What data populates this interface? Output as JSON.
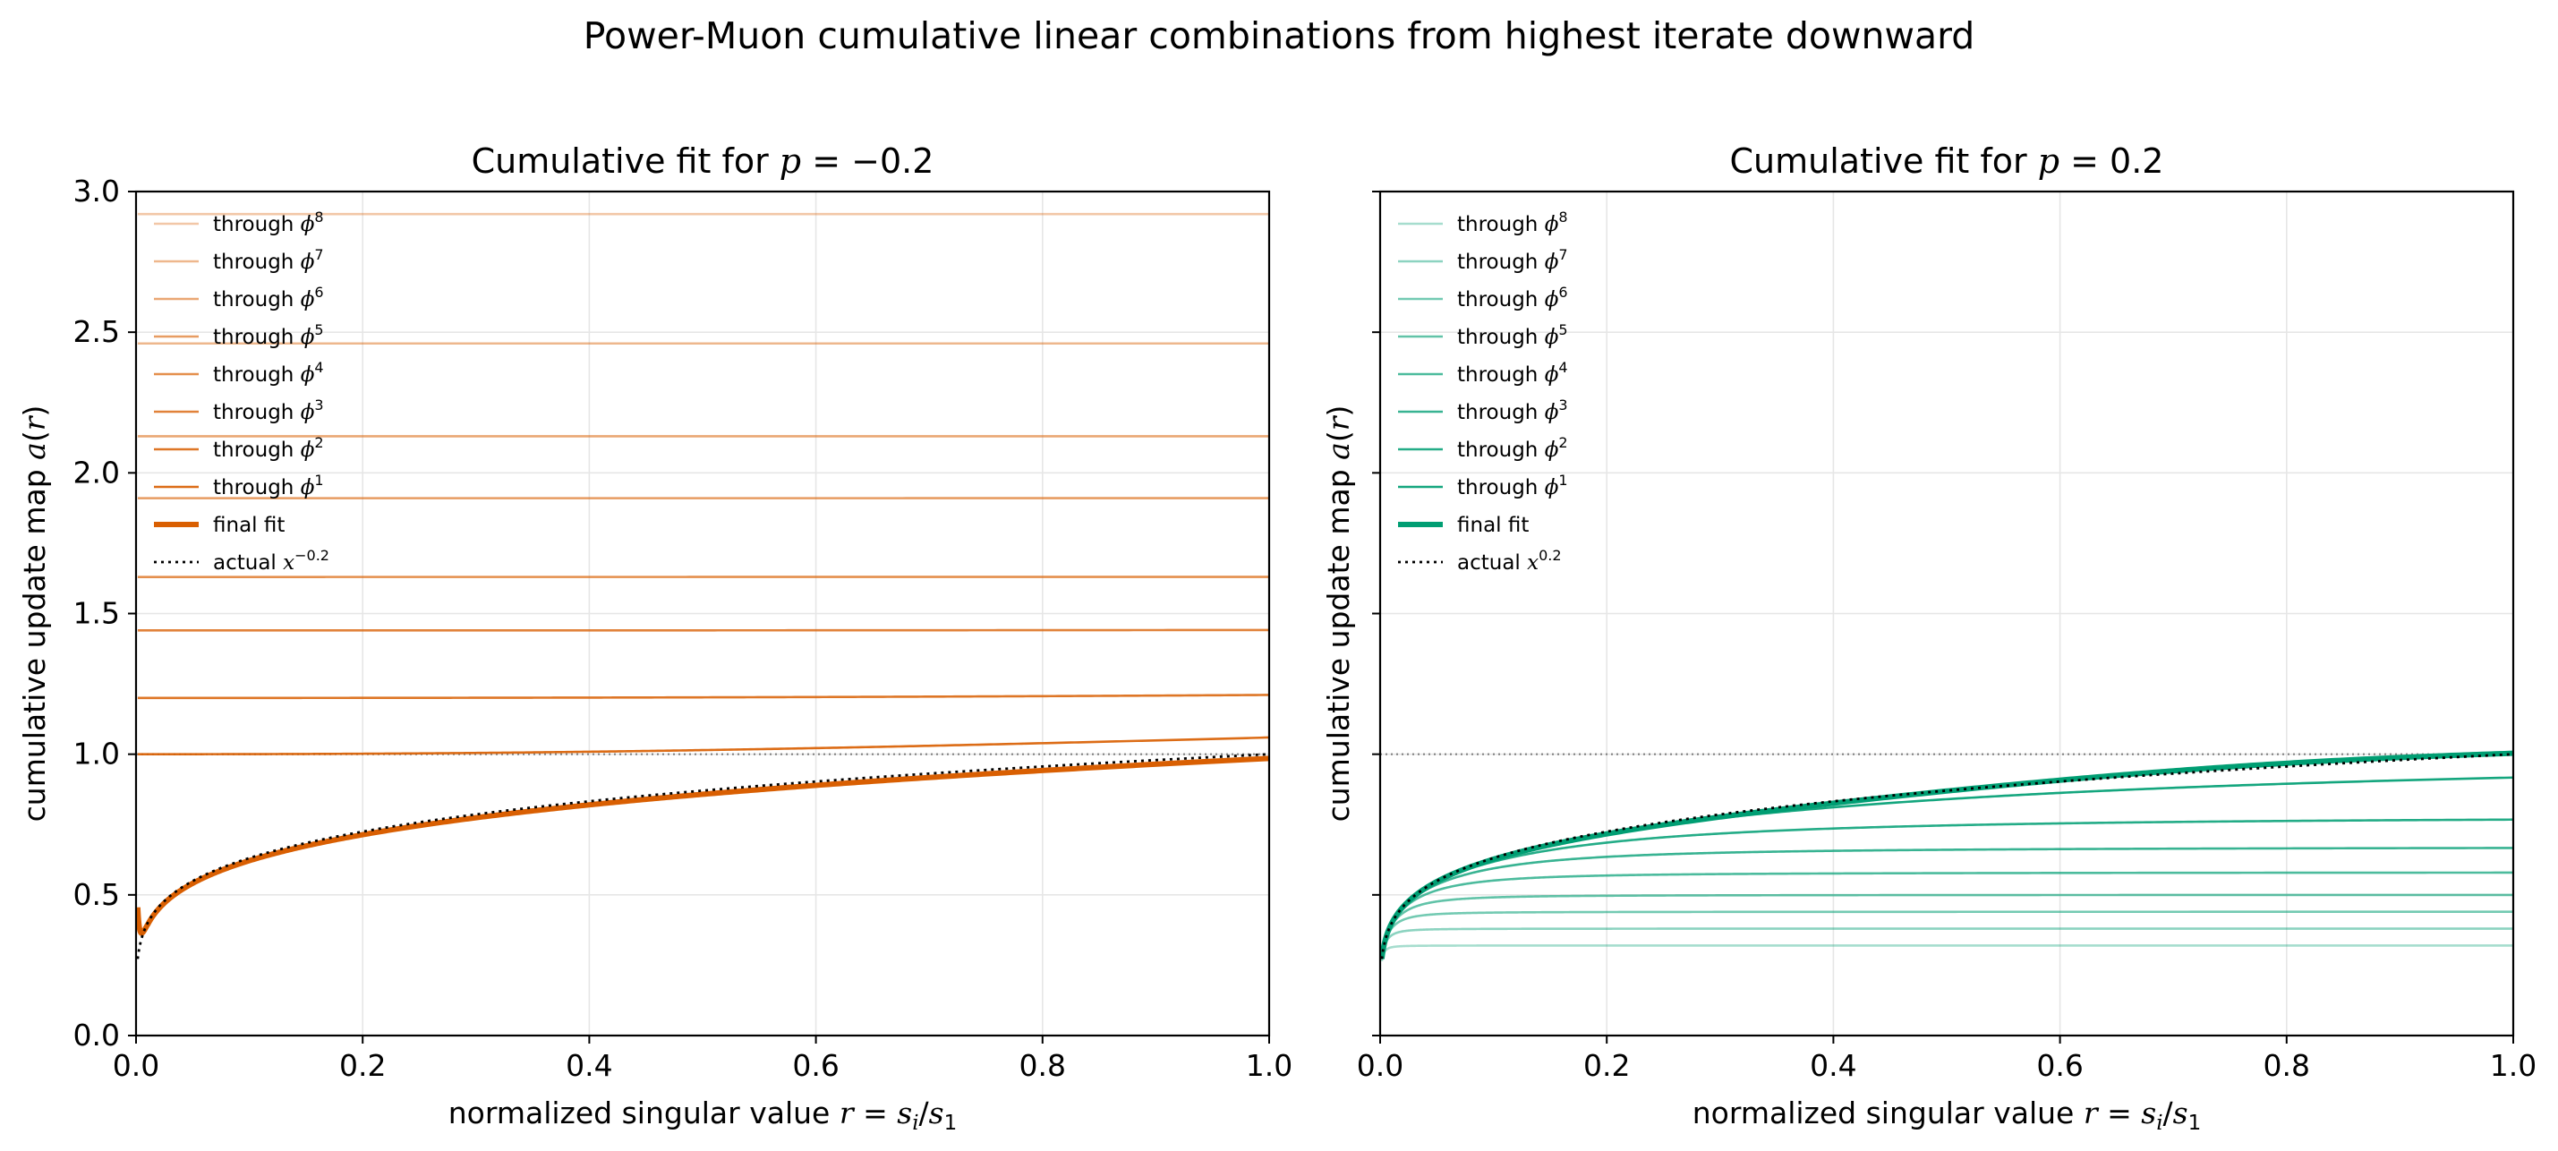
{
  "figure": {
    "suptitle": "Power-Muon cumulative linear combinations from highest iterate downward"
  },
  "colors": {
    "left_accent": "#d95f02",
    "right_accent": "#009e73",
    "actual": "#000000",
    "reference": "#808080",
    "grid": "#e6e6e6"
  },
  "chart_data": [
    {
      "type": "line",
      "title": "Cumulative fit for p = −0.2",
      "title_parts": {
        "pre": "Cumulative fit for ",
        "var": "p",
        "eq": " = ",
        "val": "−0.2"
      },
      "xlabel": "normalized singular value r = s_i/s_1",
      "xlabel_parts": {
        "pre": "normalized singular value ",
        "r": "r",
        "eq": " = ",
        "s": "s",
        "i": "i",
        "slash": "/",
        "s2": "s",
        "one": "1"
      },
      "ylabel": "cumulative update map a(r)",
      "ylabel_parts": {
        "pre": "cumulative update map ",
        "a": "a",
        "lp": "(",
        "r": "r",
        "rp": ")"
      },
      "xlim": [
        0,
        1
      ],
      "ylim": [
        0,
        3
      ],
      "xticks": [
        "0.0",
        "0.2",
        "0.4",
        "0.6",
        "0.8",
        "1.0"
      ],
      "yticks": [
        "0.0",
        "0.5",
        "1.0",
        "1.5",
        "2.0",
        "2.5",
        "3.0"
      ],
      "grid": true,
      "legend_placement": "upper-left",
      "reference_line_y": 1.0,
      "series": [
        {
          "name": "through φ8",
          "label": "through ",
          "phi": "ϕ",
          "exp": "8",
          "plateau": 2.92,
          "alpha": 0.35
        },
        {
          "name": "through φ7",
          "label": "through ",
          "phi": "ϕ",
          "exp": "7",
          "plateau": 2.46,
          "alpha": 0.45
        },
        {
          "name": "through φ6",
          "label": "through ",
          "phi": "ϕ",
          "exp": "6",
          "plateau": 2.13,
          "alpha": 0.55
        },
        {
          "name": "through φ5",
          "label": "through ",
          "phi": "ϕ",
          "exp": "5",
          "plateau": 1.91,
          "alpha": 0.62
        },
        {
          "name": "through φ4",
          "label": "through ",
          "phi": "ϕ",
          "exp": "4",
          "plateau": 1.63,
          "alpha": 0.7
        },
        {
          "name": "through φ3",
          "label": "through ",
          "phi": "ϕ",
          "exp": "3",
          "plateau": 1.44,
          "alpha": 0.78
        },
        {
          "name": "through φ2",
          "label": "through ",
          "phi": "ϕ",
          "exp": "2",
          "plateau": 1.2,
          "alpha": 0.86
        },
        {
          "name": "through φ1",
          "label": "through ",
          "phi": "ϕ",
          "exp": "1",
          "plateau": 1.0,
          "alpha": 0.92
        },
        {
          "name": "final fit",
          "label": "final fit",
          "style": "bold"
        },
        {
          "name": "actual x^-0.2",
          "label": "actual ",
          "xvar": "x",
          "exp": "−0.2",
          "style": "dotted"
        }
      ]
    },
    {
      "type": "line",
      "title": "Cumulative fit for p = 0.2",
      "title_parts": {
        "pre": "Cumulative fit for ",
        "var": "p",
        "eq": " = ",
        "val": "0.2"
      },
      "xlabel": "normalized singular value r = s_i/s_1",
      "xlabel_parts": {
        "pre": "normalized singular value ",
        "r": "r",
        "eq": " = ",
        "s": "s",
        "i": "i",
        "slash": "/",
        "s2": "s",
        "one": "1"
      },
      "ylabel": "cumulative update map a(r)",
      "ylabel_parts": {
        "pre": "cumulative update map ",
        "a": "a",
        "lp": "(",
        "r": "r",
        "rp": ")"
      },
      "xlim": [
        0,
        1
      ],
      "ylim": [
        0,
        3
      ],
      "xticks": [
        "0.0",
        "0.2",
        "0.4",
        "0.6",
        "0.8",
        "1.0"
      ],
      "yticks": [
        "0.0",
        "0.5",
        "1.0",
        "1.5",
        "2.0",
        "2.5",
        "3.0"
      ],
      "grid": true,
      "legend_placement": "upper-left",
      "reference_line_y": 1.0,
      "series": [
        {
          "name": "through φ8",
          "label": "through ",
          "phi": "ϕ",
          "exp": "8",
          "plateau": 0.32,
          "alpha": 0.35
        },
        {
          "name": "through φ7",
          "label": "through ",
          "phi": "ϕ",
          "exp": "7",
          "plateau": 0.38,
          "alpha": 0.45
        },
        {
          "name": "through φ6",
          "label": "through ",
          "phi": "ϕ",
          "exp": "6",
          "plateau": 0.44,
          "alpha": 0.55
        },
        {
          "name": "through φ5",
          "label": "through ",
          "phi": "ϕ",
          "exp": "5",
          "plateau": 0.5,
          "alpha": 0.62
        },
        {
          "name": "through φ4",
          "label": "through ",
          "phi": "ϕ",
          "exp": "4",
          "plateau": 0.58,
          "alpha": 0.7
        },
        {
          "name": "through φ3",
          "label": "through ",
          "phi": "ϕ",
          "exp": "3",
          "plateau": 0.67,
          "alpha": 0.78
        },
        {
          "name": "through φ2",
          "label": "through ",
          "phi": "ϕ",
          "exp": "2",
          "plateau": 0.78,
          "alpha": 0.86
        },
        {
          "name": "through φ1",
          "label": "through ",
          "phi": "ϕ",
          "exp": "1",
          "plateau": 1.0,
          "alpha": 0.92
        },
        {
          "name": "final fit",
          "label": "final fit",
          "style": "bold"
        },
        {
          "name": "actual x^0.2",
          "label": "actual ",
          "xvar": "x",
          "exp": "0.2",
          "style": "dotted"
        }
      ]
    }
  ]
}
